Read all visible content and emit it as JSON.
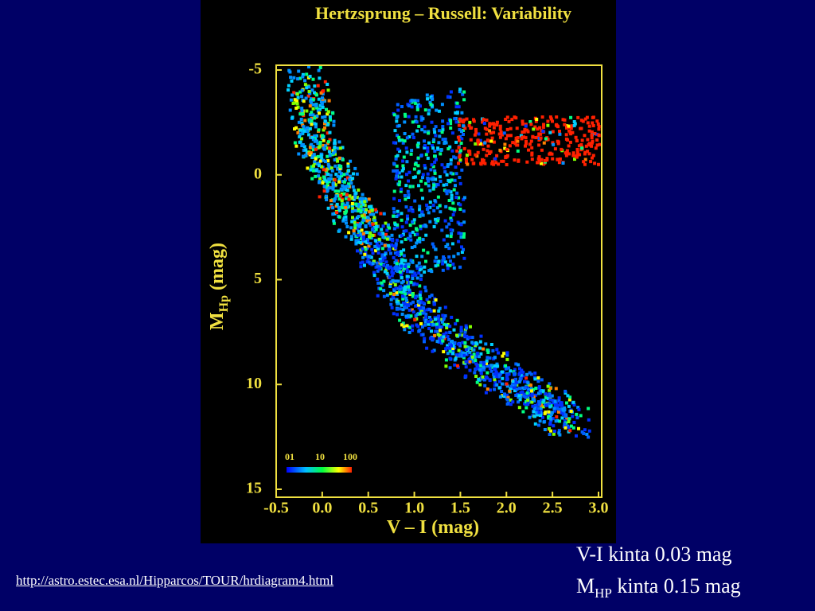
{
  "chart_data": {
    "type": "scatter",
    "title": "Hertzsprung – Russell: Variability",
    "x_label": "V – I  (mag)",
    "y_label": {
      "main": "M",
      "sub": "Hp",
      "unit": "(mag)"
    },
    "xlim": [
      -0.5,
      3.0
    ],
    "xticks": [
      -0.5,
      {
        "value": 0,
        "label": "0.0"
      },
      0.5,
      {
        "value": 1,
        "label": "1.0"
      },
      1.5,
      {
        "value": 2,
        "label": "2.0"
      },
      2.5,
      {
        "value": 3,
        "label": "3.0"
      }
    ],
    "ylim": [
      -5,
      15
    ],
    "yticks": [
      -5,
      0,
      5,
      10,
      15
    ],
    "y_inverted": true,
    "colorbar_labels": [
      "01",
      "10",
      "100"
    ],
    "frame_color": "#f0e040"
  },
  "notes": [
    {
      "text": "V-I kinta 0.03 mag"
    },
    {
      "main": "M",
      "sub": "HP",
      "rest": " kinta 0.15 mag"
    }
  ],
  "link": "http://astro.estec.esa.nl/Hipparcos/TOUR/hrdiagram4.html"
}
